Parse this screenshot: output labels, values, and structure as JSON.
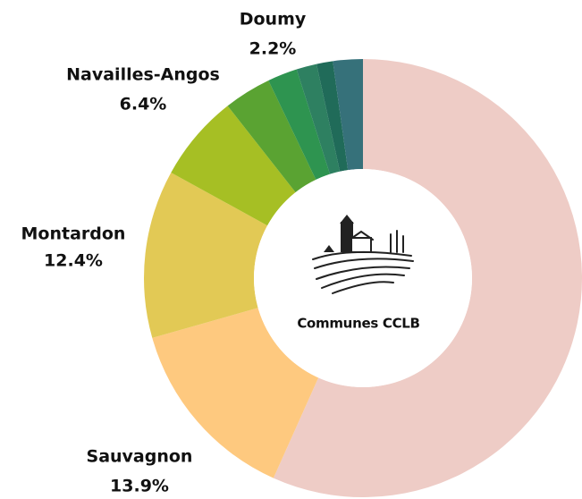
{
  "chart_data": {
    "type": "pie",
    "categories": [
      null,
      "Sauvagnon",
      "Montardon",
      "Navailles-Angos",
      null,
      null,
      null,
      null,
      "Doumy"
    ],
    "values": [
      56.7,
      13.9,
      12.4,
      6.4,
      3.5,
      2.2,
      1.5,
      1.2,
      2.2
    ],
    "value_labels": [
      null,
      "13.9%",
      "12.4%",
      "6.4%",
      null,
      null,
      null,
      null,
      "2.2%"
    ],
    "colors": [
      "#eeccc6",
      "#fec97f",
      "#e2c955",
      "#a6bf24",
      "#5aa332",
      "#2e9450",
      "#2e8061",
      "#206b59",
      "#36717a"
    ],
    "center_label": "Communes CCLB"
  }
}
